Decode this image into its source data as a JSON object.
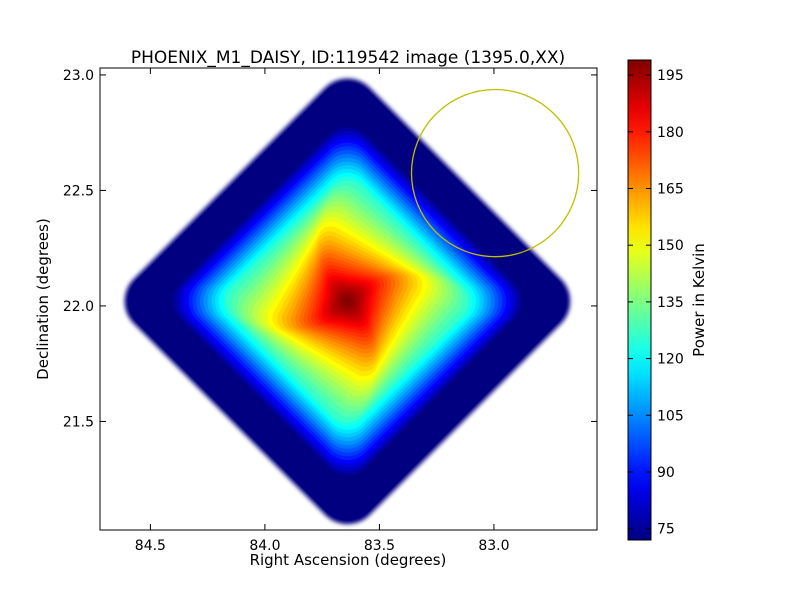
{
  "chart_data": {
    "type": "heatmap",
    "title": "PHOENIX_M1_DAISY, ID:119542 image (1395.0,XX)",
    "xlabel": "Right Ascension (degrees)",
    "ylabel": "Declination (degrees)",
    "xlim": [
      84.72,
      82.55
    ],
    "ylim": [
      21.03,
      23.03
    ],
    "x_inverted": true,
    "xticks": [
      84.5,
      84.0,
      83.5,
      83.0
    ],
    "xtick_labels": [
      "84.5",
      "84.0",
      "83.5",
      "83.0"
    ],
    "yticks": [
      21.5,
      22.0,
      22.5,
      23.0
    ],
    "ytick_labels": [
      "21.5",
      "22.0",
      "22.5",
      "23.0"
    ],
    "grid": false,
    "colormap": "jet",
    "colorbar": {
      "label": "Power in Kelvin",
      "min": 72,
      "max": 199,
      "ticks": [
        75,
        90,
        105,
        120,
        135,
        150,
        165,
        180,
        195
      ],
      "tick_labels": [
        "75",
        "90",
        "105",
        "120",
        "135",
        "150",
        "165",
        "180",
        "195"
      ]
    },
    "map": {
      "center_ra": 83.64,
      "center_dec": 22.02,
      "peak_value": 199,
      "edge_value": 72,
      "footprint_half_width_deg": 1.03
    },
    "annotations": [
      {
        "type": "circle",
        "ra": 82.995,
        "dec": 22.575,
        "radius_deg": 0.365,
        "color": "#bfbf00"
      }
    ]
  }
}
